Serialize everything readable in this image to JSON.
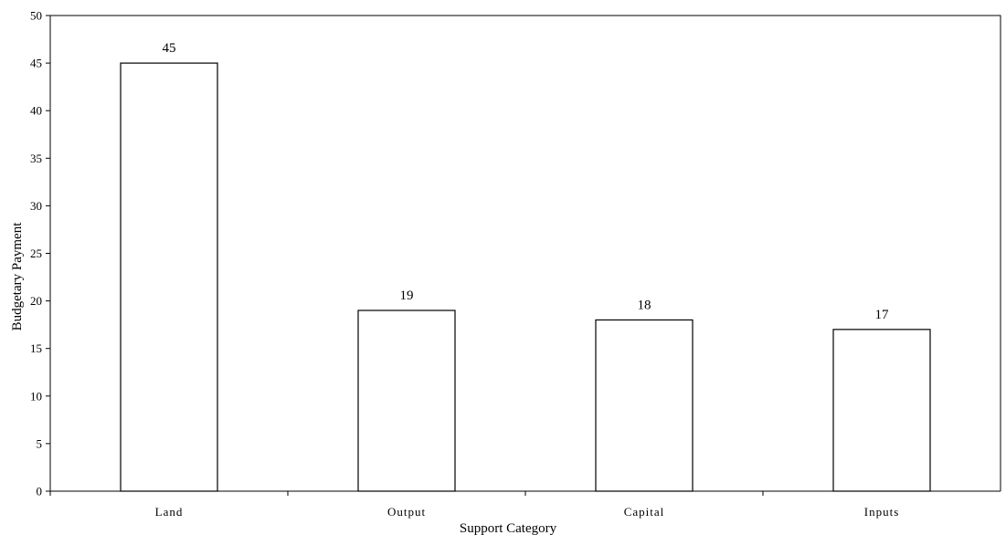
{
  "chart_data": {
    "type": "bar",
    "categories": [
      "Land",
      "Output",
      "Capital",
      "Inputs"
    ],
    "values": [
      45,
      19,
      18,
      17
    ],
    "data_labels": [
      "45",
      "19",
      "18",
      "17"
    ],
    "title": "",
    "xlabel": "Support Category",
    "ylabel": "Budgetary Payment",
    "ylim": [
      0,
      50
    ],
    "yticks": [
      0,
      5,
      10,
      15,
      20,
      25,
      30,
      35,
      40,
      45,
      50
    ],
    "grid": false,
    "legend": "none",
    "colors": {
      "bar_fill": "#ffffff",
      "bar_stroke": "#000000",
      "axis": "#000000"
    }
  }
}
